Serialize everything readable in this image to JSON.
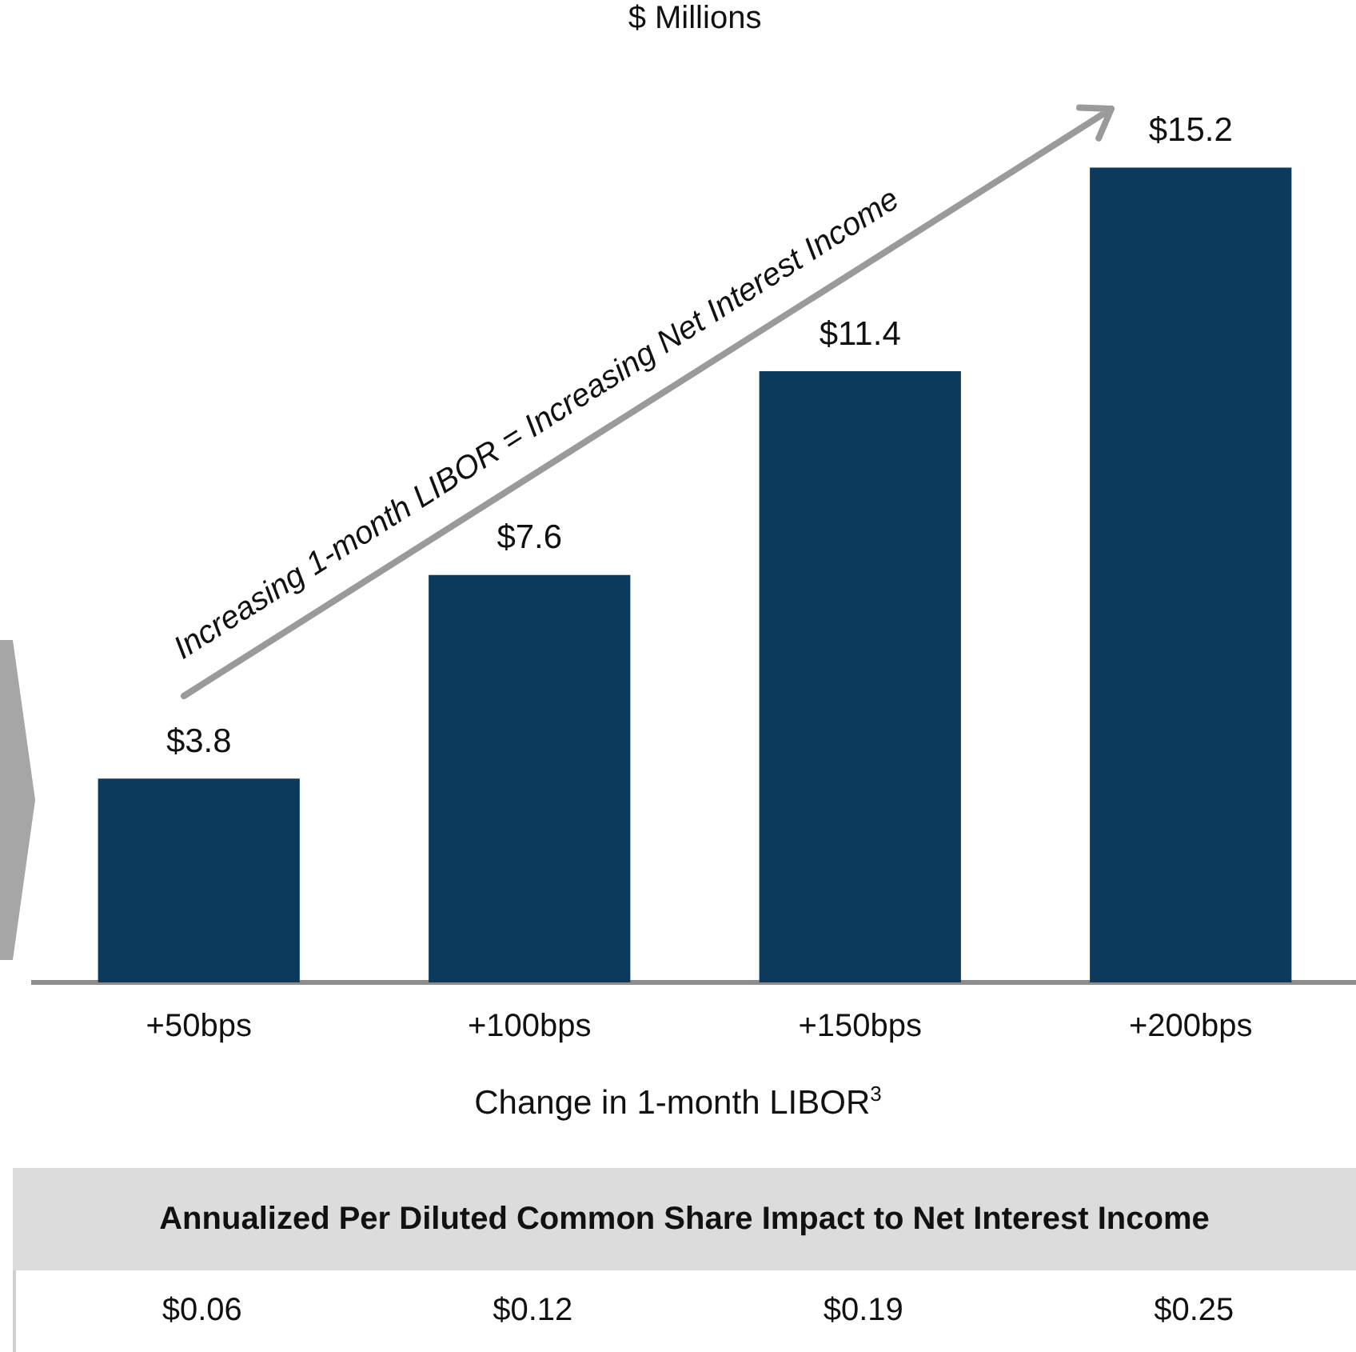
{
  "chart_data": {
    "type": "bar",
    "title": "$ Millions",
    "xlabel": "Change in 1-month LIBOR$^{3}$",
    "categories": [
      "+50bps",
      "+100bps",
      "+150bps",
      "+200bps"
    ],
    "values": [
      3.8,
      7.6,
      11.4,
      15.2
    ],
    "color": "#0b3a5c",
    "value_labels": [
      "$3.8",
      "$7.6",
      "$11.4",
      "$15.2"
    ],
    "annotations": [
      "Increasing 1-month LIBOR = Increasing Net Interest Income",
      "Annualized Per Diluted Common Share Impact to Net Interest Income",
      "$0.06",
      "$0.12",
      "$0.19",
      "$0.25"
    ]
  }
}
